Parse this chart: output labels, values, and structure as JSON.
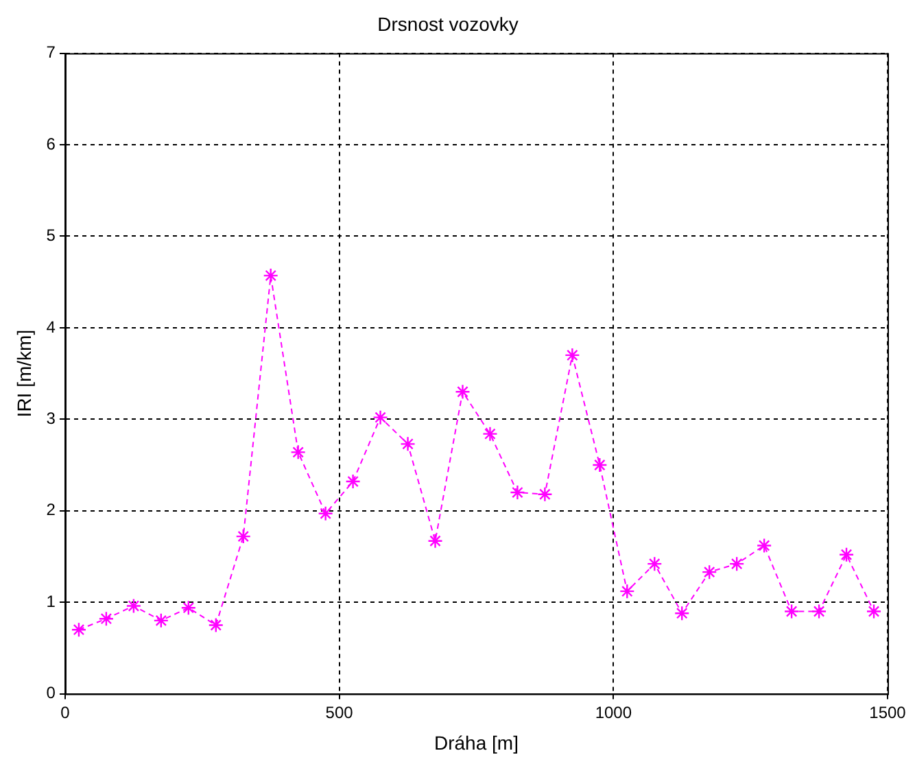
{
  "chart_data": {
    "type": "line",
    "title": "Drsnost vozovky",
    "xlabel": "Dráha [m]",
    "ylabel": "IRI [m/km]",
    "x": [
      25,
      75,
      125,
      175,
      225,
      275,
      325,
      375,
      425,
      475,
      525,
      575,
      625,
      675,
      725,
      775,
      825,
      875,
      925,
      975,
      1025,
      1075,
      1125,
      1175,
      1225,
      1275,
      1325,
      1375,
      1425,
      1475
    ],
    "series": [
      {
        "color": "#ff00ff",
        "values": [
          0.7,
          0.82,
          0.96,
          0.8,
          0.94,
          0.75,
          1.72,
          4.57,
          2.64,
          1.97,
          2.32,
          3.02,
          2.73,
          1.67,
          3.3,
          2.84,
          2.2,
          2.18,
          3.7,
          2.5,
          1.12,
          1.42,
          0.88,
          1.33,
          1.42,
          1.62,
          0.9,
          0.9,
          1.52,
          0.9
        ]
      }
    ],
    "xlim": [
      0,
      1500
    ],
    "xticks": [
      0,
      500,
      1000,
      1500
    ],
    "ylim": [
      0,
      7
    ],
    "yticks": [
      0,
      1,
      2,
      3,
      4,
      5,
      6,
      7
    ],
    "grid": true,
    "marker": "cross",
    "line_style": "dashed",
    "legend": false
  }
}
